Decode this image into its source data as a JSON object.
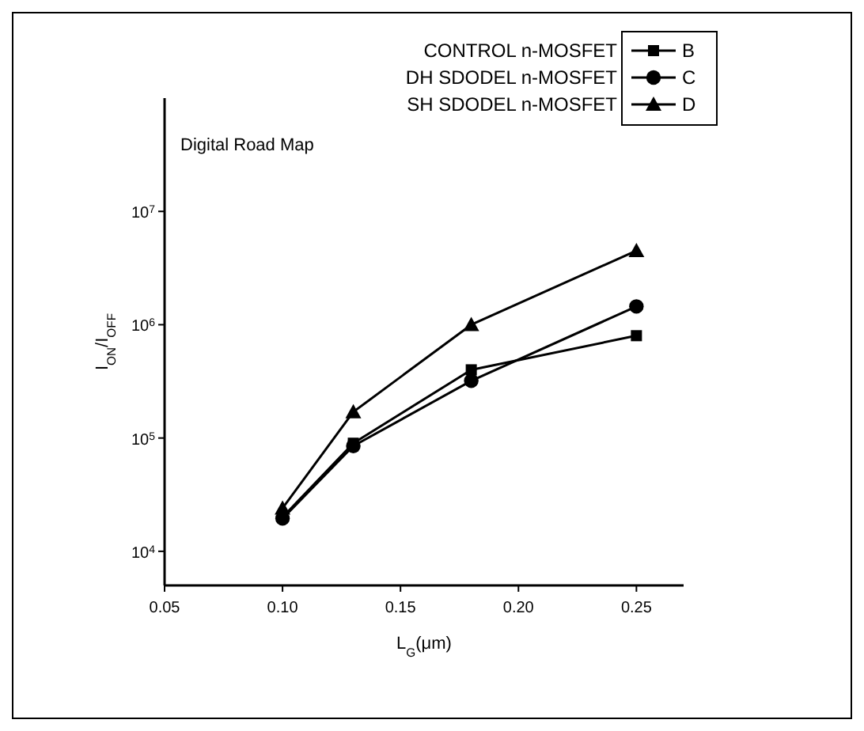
{
  "chart_data": {
    "type": "line",
    "title": "Digital Road Map",
    "xlabel": "L$_{G}$(μm)",
    "ylabel": "I$_{ON}$/I$_{OFF}$",
    "x": [
      0.1,
      0.13,
      0.18,
      0.25
    ],
    "series": [
      {
        "name": "B",
        "color": "#000000",
        "marker": "square",
        "values": [
          20000,
          90000,
          400000,
          800000
        ]
      },
      {
        "name": "C",
        "color": "#000000",
        "marker": "circle",
        "values": [
          19500,
          85000,
          320000,
          1450000
        ]
      },
      {
        "name": "D",
        "color": "#000000",
        "marker": "triangle",
        "values": [
          24000,
          170000,
          1000000,
          4500000
        ]
      }
    ],
    "annotations": [
      "CONTROL n-MOSFET",
      "DH SDODEL n-MOSFET",
      "SH SDODEL n-MOSFET"
    ],
    "log": "y",
    "xlim": [
      0.05,
      0.27
    ],
    "xticks": [
      {
        "value": 0.05,
        "label": "0.05"
      },
      {
        "value": 0.1,
        "label": "0.10"
      },
      {
        "value": 0.15,
        "label": "0.15"
      },
      {
        "value": 0.2,
        "label": "0.20"
      },
      {
        "value": 0.25,
        "label": "0.25"
      }
    ],
    "ylim": [
      5000,
      100000000
    ],
    "yticks": [
      {
        "value": 10000,
        "label": "10$^{4}$"
      },
      {
        "value": 100000,
        "label": "10$^{5}$"
      },
      {
        "value": 1000000,
        "label": "10$^{6}$"
      },
      {
        "value": 10000000,
        "label": "10$^{7}$"
      }
    ],
    "grid": false,
    "legend": "top right",
    "line_style": "solid"
  }
}
